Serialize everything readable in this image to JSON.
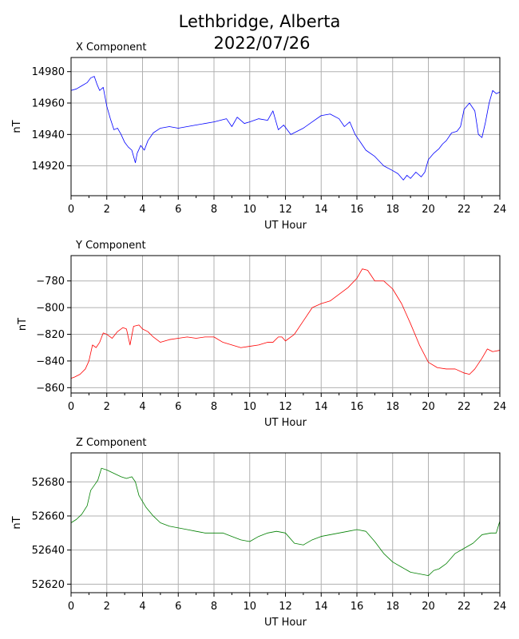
{
  "figure": {
    "title_line1": "Lethbridge, Alberta",
    "title_line2": "2022/07/26"
  },
  "chart_data": [
    {
      "type": "line",
      "title": "X Component",
      "xlabel": "UT Hour",
      "ylabel": "nT",
      "xlim": [
        0,
        24
      ],
      "ylim": [
        14901,
        14989
      ],
      "xticks": [
        0,
        2,
        4,
        6,
        8,
        10,
        12,
        14,
        16,
        18,
        20,
        22,
        24
      ],
      "yticks": [
        14920,
        14940,
        14960,
        14980
      ],
      "grid": true,
      "color": "#0000ff",
      "x": [
        0,
        0.3,
        0.6,
        0.9,
        1.1,
        1.3,
        1.45,
        1.6,
        1.8,
        2.0,
        2.2,
        2.4,
        2.6,
        2.8,
        3.0,
        3.2,
        3.4,
        3.6,
        3.7,
        3.9,
        4.1,
        4.3,
        4.6,
        5.0,
        5.5,
        6.0,
        7.0,
        8.0,
        8.7,
        9.0,
        9.3,
        9.7,
        10.0,
        10.5,
        11.0,
        11.3,
        11.6,
        11.9,
        12.3,
        13.0,
        13.5,
        14.0,
        14.5,
        15.0,
        15.3,
        15.6,
        15.9,
        16.2,
        16.5,
        17.0,
        17.5,
        18.0,
        18.3,
        18.6,
        18.8,
        19.0,
        19.3,
        19.6,
        19.8,
        20.0,
        20.3,
        20.6,
        20.8,
        21.0,
        21.3,
        21.6,
        21.8,
        22.0,
        22.3,
        22.6,
        22.8,
        23.0,
        23.2,
        23.4,
        23.6,
        23.8,
        24.0
      ],
      "y": [
        14968,
        14969,
        14971,
        14973,
        14976,
        14977,
        14972,
        14968,
        14970,
        14958,
        14950,
        14943,
        14944,
        14940,
        14935,
        14932,
        14930,
        14922,
        14928,
        14933,
        14930,
        14936,
        14941,
        14944,
        14945,
        14944,
        14946,
        14948,
        14950,
        14945,
        14951,
        14947,
        14948,
        14950,
        14949,
        14955,
        14943,
        14946,
        14940,
        14944,
        14948,
        14952,
        14953,
        14950,
        14945,
        14948,
        14940,
        14935,
        14930,
        14926,
        14920,
        14917,
        14915,
        14911,
        14914,
        14912,
        14916,
        14913,
        14916,
        14924,
        14928,
        14931,
        14934,
        14936,
        14941,
        14942,
        14945,
        14956,
        14960,
        14955,
        14940,
        14938,
        14948,
        14960,
        14968,
        14966,
        14967
      ]
    },
    {
      "type": "line",
      "title": "Y Component",
      "xlabel": "UT Hour",
      "ylabel": "nT",
      "xlim": [
        0,
        24
      ],
      "ylim": [
        -864,
        -761
      ],
      "xticks": [
        0,
        2,
        4,
        6,
        8,
        10,
        12,
        14,
        16,
        18,
        20,
        22,
        24
      ],
      "yticks": [
        -860,
        -840,
        -820,
        -800,
        -780
      ],
      "grid": true,
      "color": "#ff0000",
      "x": [
        0,
        0.2,
        0.5,
        0.8,
        1.0,
        1.2,
        1.4,
        1.6,
        1.8,
        2.0,
        2.3,
        2.6,
        2.9,
        3.1,
        3.3,
        3.5,
        3.8,
        4.0,
        4.3,
        4.6,
        5.0,
        5.5,
        6.0,
        6.5,
        7.0,
        7.5,
        8.0,
        8.5,
        9.0,
        9.5,
        10.0,
        10.5,
        11.0,
        11.3,
        11.6,
        11.8,
        12.0,
        12.5,
        13.0,
        13.5,
        14.0,
        14.5,
        15.0,
        15.5,
        16.0,
        16.3,
        16.6,
        17.0,
        17.5,
        18.0,
        18.5,
        19.0,
        19.5,
        20.0,
        20.5,
        21.0,
        21.5,
        22.0,
        22.3,
        22.6,
        23.0,
        23.3,
        23.6,
        24.0
      ],
      "y": [
        -853,
        -852,
        -850,
        -846,
        -840,
        -828,
        -830,
        -826,
        -819,
        -820,
        -823,
        -818,
        -815,
        -816,
        -828,
        -814,
        -813,
        -816,
        -818,
        -822,
        -826,
        -824,
        -823,
        -822,
        -823,
        -822,
        -822,
        -826,
        -828,
        -830,
        -829,
        -828,
        -826,
        -826,
        -822,
        -822,
        -825,
        -820,
        -810,
        -800,
        -797,
        -795,
        -790,
        -785,
        -778,
        -771,
        -772,
        -780,
        -780,
        -786,
        -797,
        -812,
        -828,
        -841,
        -845,
        -846,
        -846,
        -849,
        -850,
        -846,
        -838,
        -831,
        -833,
        -832
      ]
    },
    {
      "type": "line",
      "title": "Z Component",
      "xlabel": "UT Hour",
      "ylabel": "nT",
      "xlim": [
        0,
        24
      ],
      "ylim": [
        52615,
        52697
      ],
      "xticks": [
        0,
        2,
        4,
        6,
        8,
        10,
        12,
        14,
        16,
        18,
        20,
        22,
        24
      ],
      "yticks": [
        52620,
        52640,
        52660,
        52680
      ],
      "grid": true,
      "color": "#008000",
      "x": [
        0,
        0.3,
        0.6,
        0.9,
        1.1,
        1.3,
        1.5,
        1.7,
        2.0,
        2.4,
        2.8,
        3.1,
        3.4,
        3.6,
        3.8,
        4.2,
        4.6,
        5.0,
        5.5,
        6.0,
        6.5,
        7.0,
        7.5,
        8.0,
        8.5,
        9.0,
        9.5,
        10.0,
        10.5,
        11.0,
        11.5,
        12.0,
        12.5,
        13.0,
        13.5,
        14.0,
        14.5,
        15.0,
        15.5,
        16.0,
        16.5,
        17.0,
        17.5,
        18.0,
        18.5,
        19.0,
        19.5,
        20.0,
        20.3,
        20.6,
        21.0,
        21.5,
        22.0,
        22.5,
        23.0,
        23.5,
        23.8,
        24.0
      ],
      "y": [
        52656,
        52658,
        52661,
        52666,
        52675,
        52678,
        52681,
        52688,
        52687,
        52685,
        52683,
        52682,
        52683,
        52680,
        52672,
        52665,
        52660,
        52656,
        52654,
        52653,
        52652,
        52651,
        52650,
        52650,
        52650,
        52648,
        52646,
        52645,
        52648,
        52650,
        52651,
        52650,
        52644,
        52643,
        52646,
        52648,
        52649,
        52650,
        52651,
        52652,
        52651,
        52645,
        52638,
        52633,
        52630,
        52627,
        52626,
        52625,
        52628,
        52629,
        52632,
        52638,
        52641,
        52644,
        52649,
        52650,
        52650,
        52657
      ]
    }
  ]
}
